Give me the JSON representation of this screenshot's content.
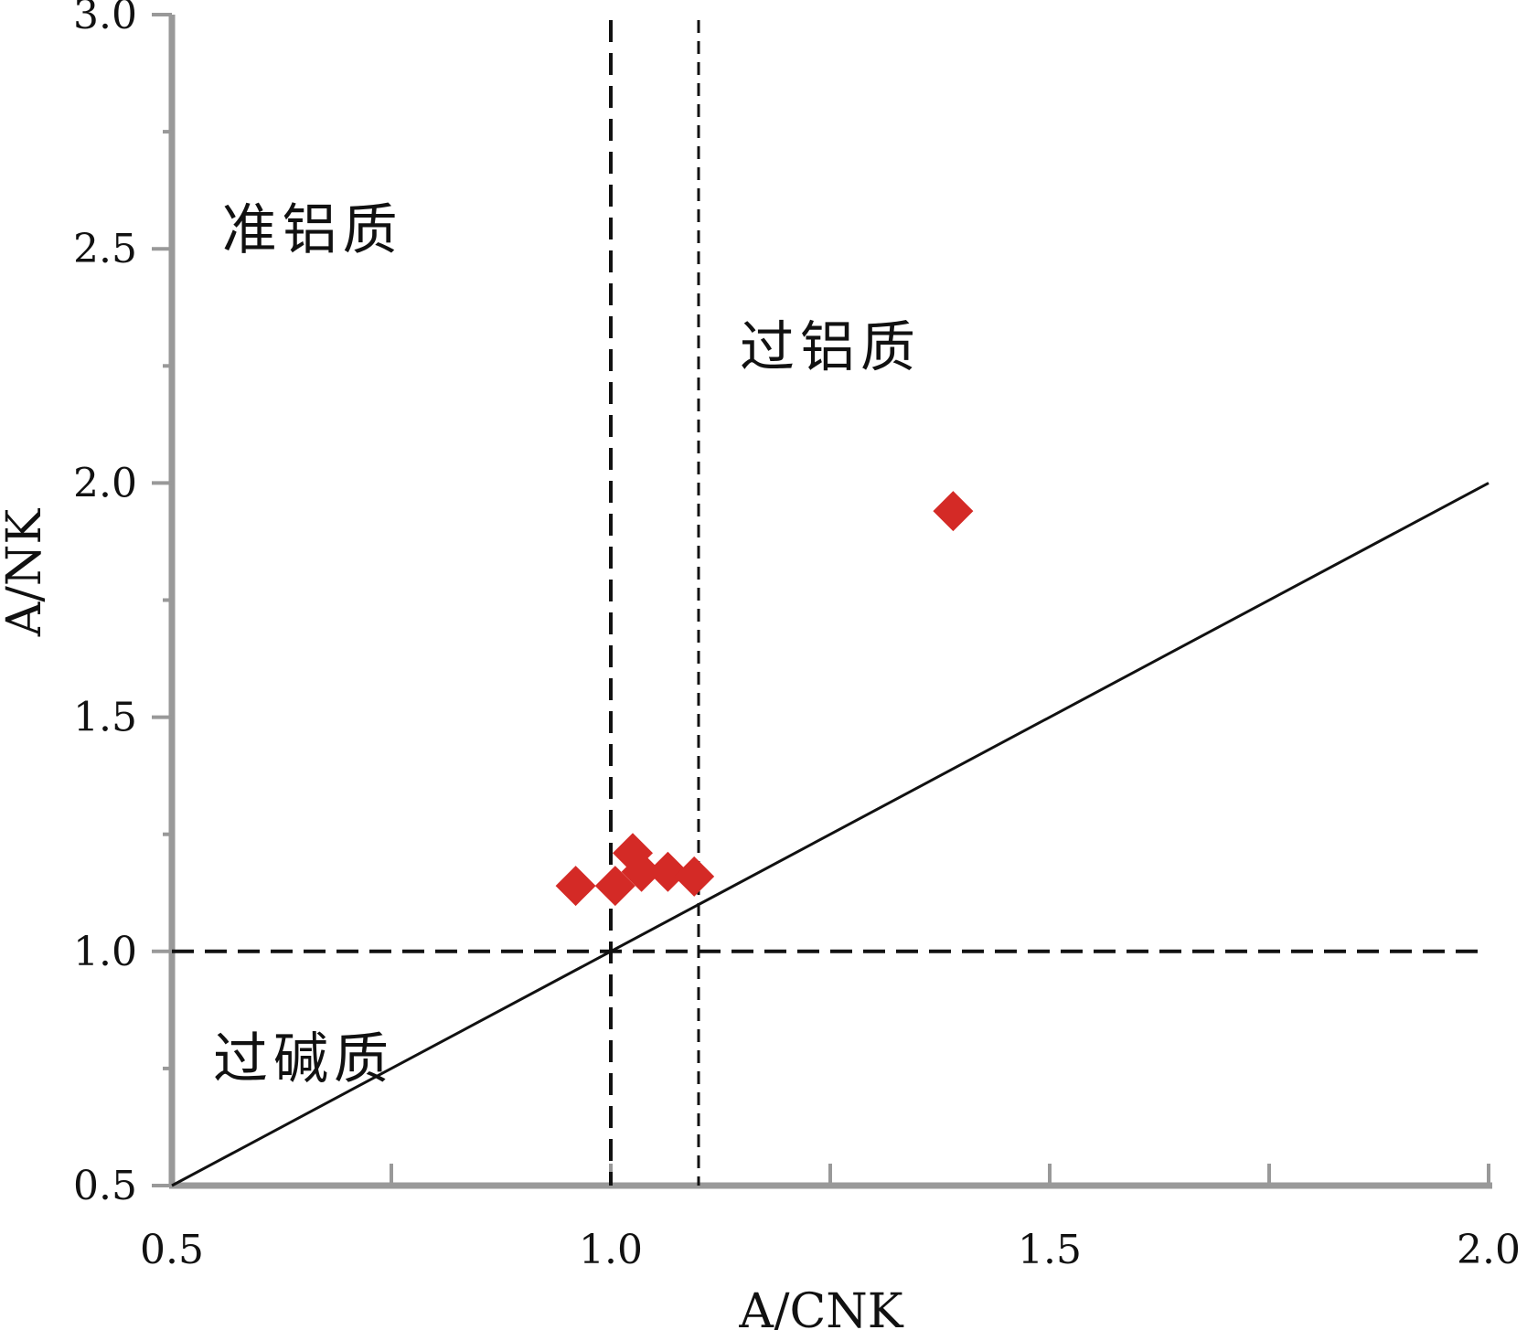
{
  "chart_data": {
    "type": "scatter",
    "title": "",
    "xlabel": "A/CNK",
    "ylabel": "A/NK",
    "xlim": [
      0.5,
      2.0
    ],
    "ylim": [
      0.5,
      3.0
    ],
    "x_ticks": [
      "0.5",
      "1.0",
      "1.5",
      "2.0"
    ],
    "y_ticks": [
      "0.5",
      "1.0",
      "1.5",
      "2.0",
      "2.5",
      "3.0"
    ],
    "grid": false,
    "legend": "none",
    "marker": "diamond",
    "marker_color": "#d42a26",
    "series": [
      {
        "points": [
          {
            "x": 0.96,
            "y": 1.14
          },
          {
            "x": 1.005,
            "y": 1.14
          },
          {
            "x": 1.025,
            "y": 1.21
          },
          {
            "x": 1.035,
            "y": 1.17
          },
          {
            "x": 1.065,
            "y": 1.17
          },
          {
            "x": 1.095,
            "y": 1.16
          },
          {
            "x": 1.39,
            "y": 1.94
          }
        ]
      }
    ],
    "reference_lines": [
      {
        "kind": "vertical",
        "x": 1.0,
        "style": "dashed"
      },
      {
        "kind": "vertical",
        "x": 1.1,
        "style": "dashed"
      },
      {
        "kind": "horizontal",
        "y": 1.0,
        "style": "dashed"
      },
      {
        "kind": "diagonal",
        "from": [
          0.5,
          0.5
        ],
        "to": [
          2.0,
          2.0
        ],
        "style": "solid"
      }
    ],
    "region_labels": [
      {
        "text": "准铝质",
        "x": 0.66,
        "y": 2.5
      },
      {
        "text": "过铝质",
        "x": 1.25,
        "y": 2.25
      },
      {
        "text": "过碱质",
        "x": 0.65,
        "y": 0.73
      }
    ]
  }
}
